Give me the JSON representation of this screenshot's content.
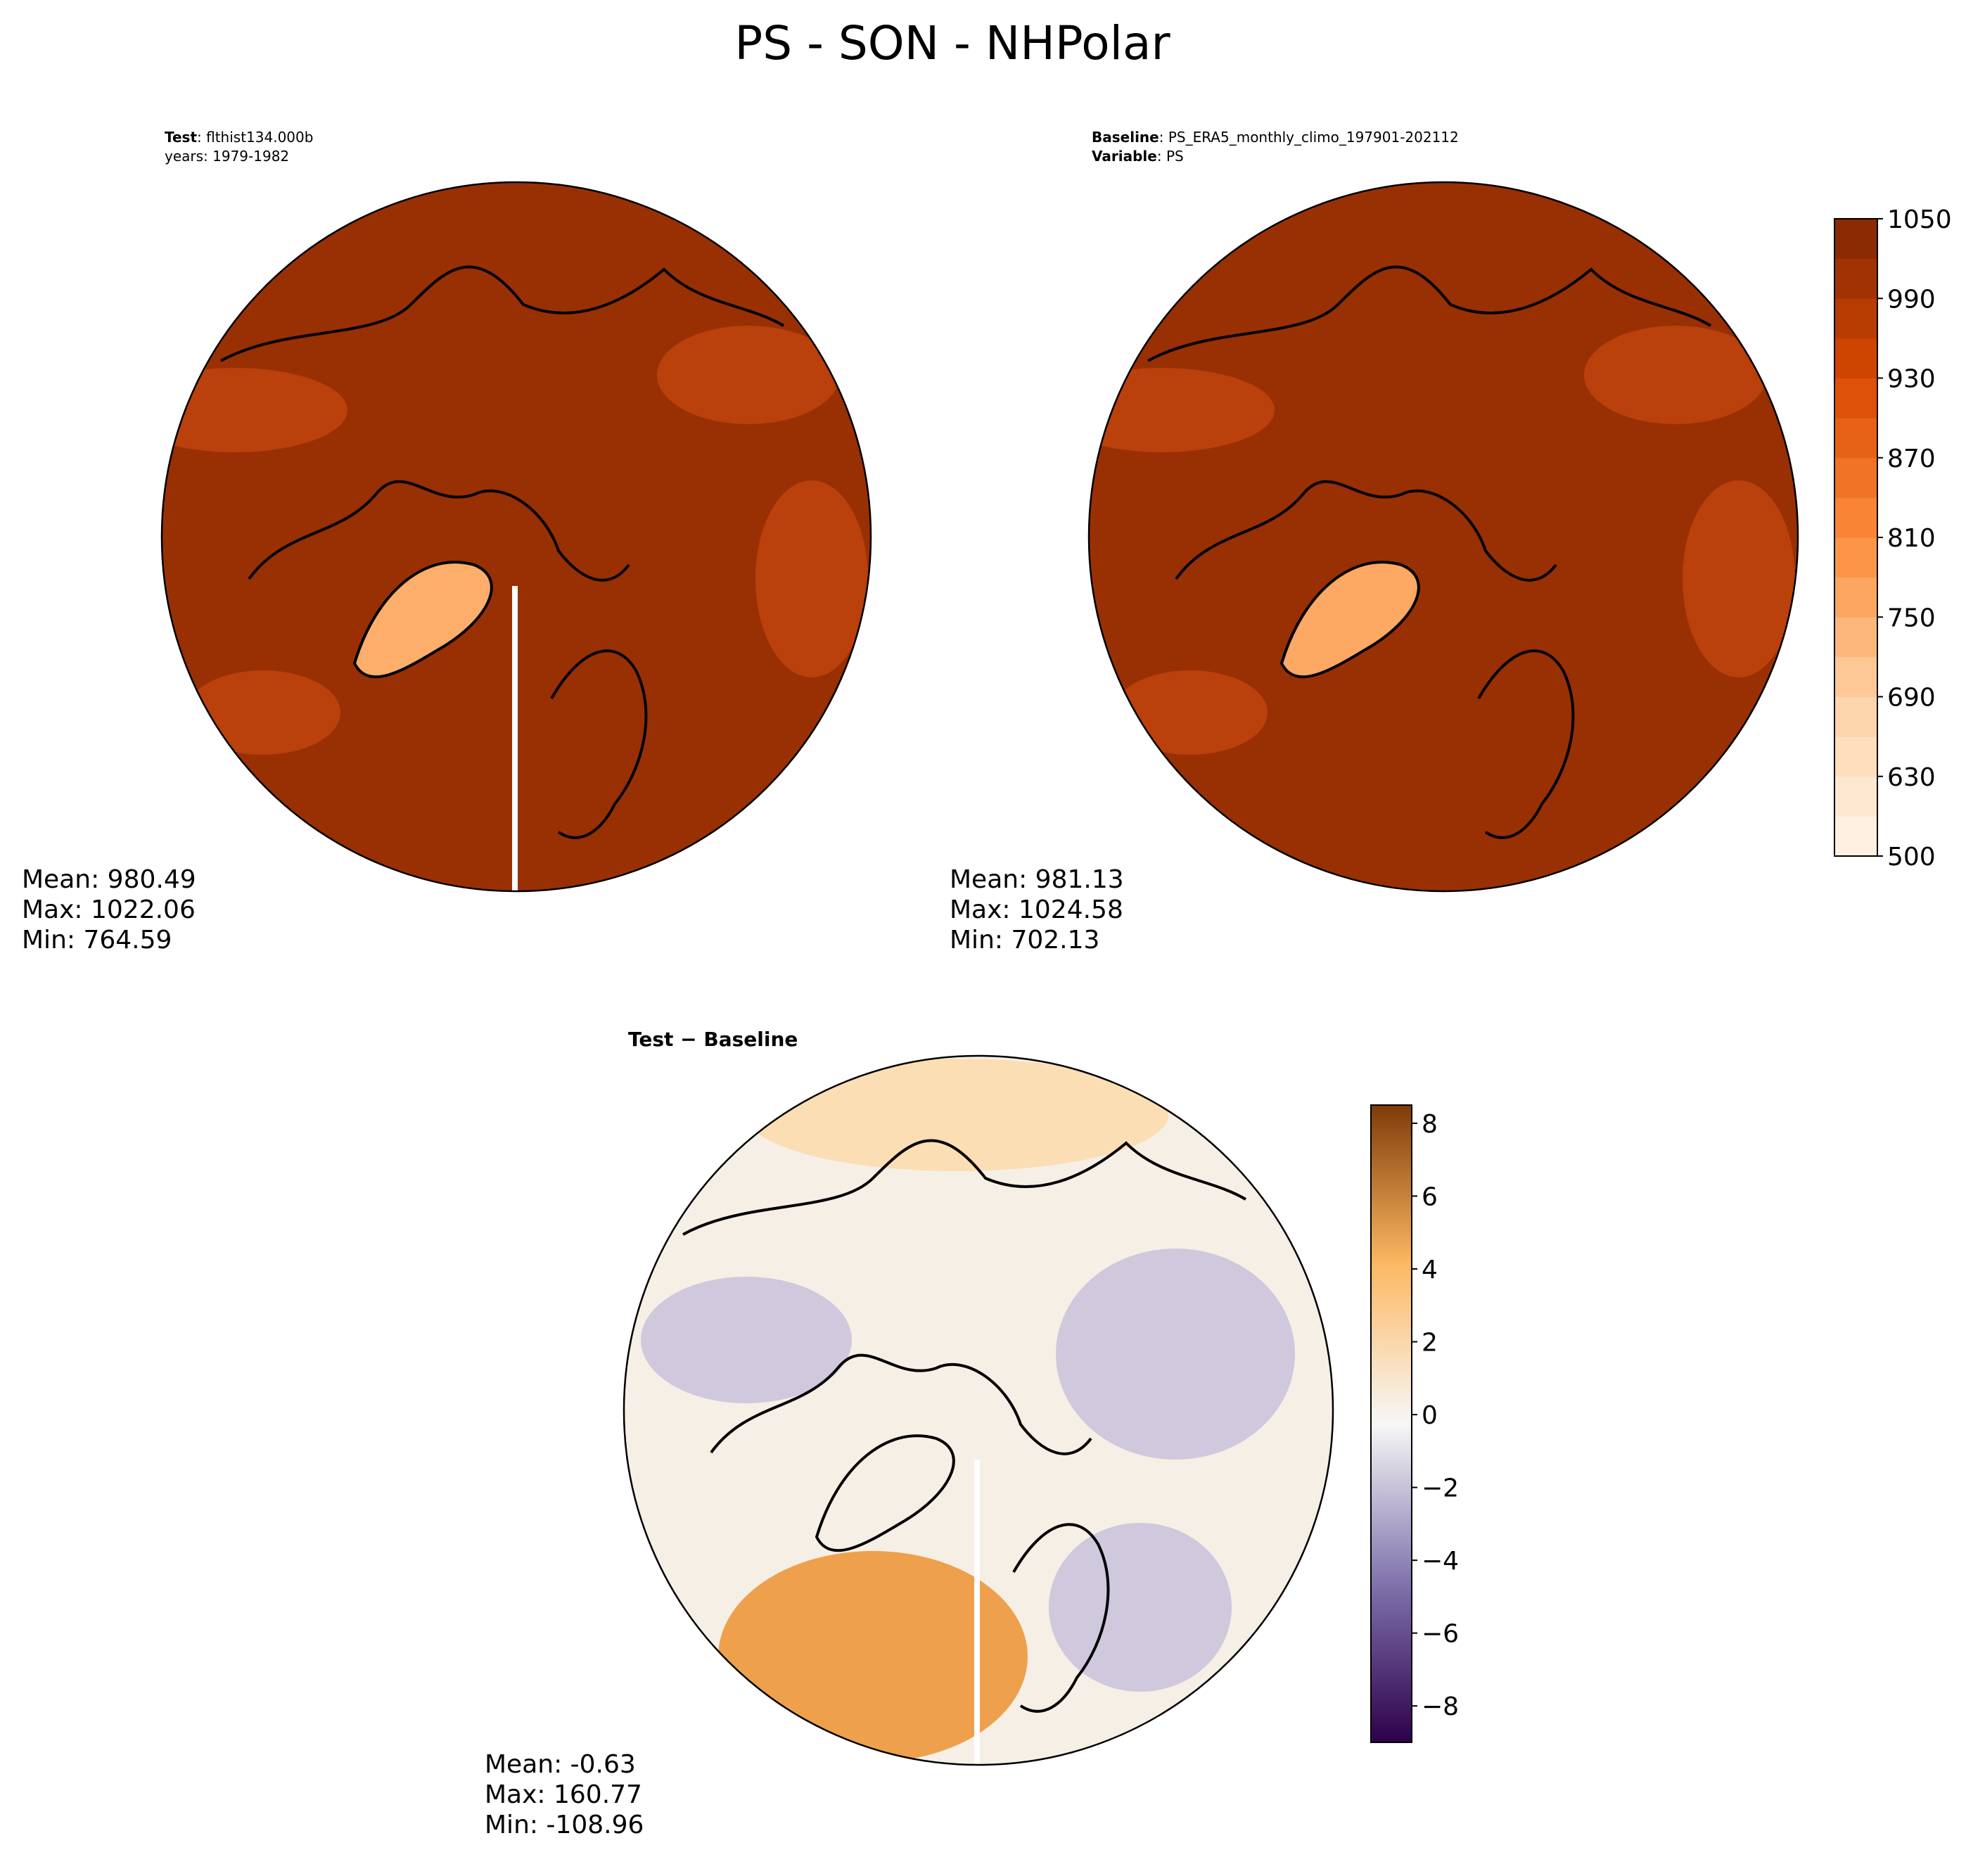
{
  "title": "PS - SON - NHPolar",
  "panels": [
    {
      "header": [
        {
          "bold": "Test",
          "rest": ": flthist134.000b"
        },
        {
          "rest": "years: 1979-1982"
        }
      ],
      "stats": [
        "Mean: 980.49",
        "Max: 1022.06",
        "Min: 764.59"
      ],
      "fill": "#993004",
      "land": "#fdae6b"
    },
    {
      "header": [
        {
          "bold": "Baseline",
          "rest": ": PS_ERA5_monthly_climo_197901-202112"
        },
        {
          "bold": "Variable",
          "rest": ": PS"
        }
      ],
      "stats": [
        "Mean: 981.13",
        "Max: 1024.58",
        "Min: 702.13"
      ],
      "fill": "#993004",
      "land": "#fda863"
    },
    {
      "header": [
        {
          "bold": "Test − Baseline"
        }
      ],
      "stats": [
        "Mean: -0.63",
        "Max: 160.77",
        "Min: -108.96"
      ],
      "fill": "#f6efe6",
      "land": "#eea04c"
    }
  ],
  "colorbars": [
    {
      "levels": [
        500,
        600,
        630,
        660,
        690,
        720,
        750,
        780,
        810,
        840,
        870,
        900,
        930,
        960,
        990,
        1020,
        1050
      ],
      "ticks": [
        500,
        630,
        690,
        750,
        810,
        870,
        930,
        990,
        1050
      ],
      "cmap": [
        "#fff5eb",
        "#fdd0a2",
        "#fd8d3c",
        "#d94801",
        "#7f2704"
      ]
    },
    {
      "lim": [
        -9,
        8.5
      ],
      "ticks": [
        {
          "value": -8,
          "label": "−8"
        },
        {
          "value": -6,
          "label": "−6"
        },
        {
          "value": -4,
          "label": "−4"
        },
        {
          "value": -2,
          "label": "−2"
        },
        0,
        2,
        4,
        6,
        8
      ],
      "cmap": [
        "#2d004b",
        "#8073ac",
        "#f7f7f7",
        "#fdb863",
        "#7f3b08"
      ]
    }
  ]
}
